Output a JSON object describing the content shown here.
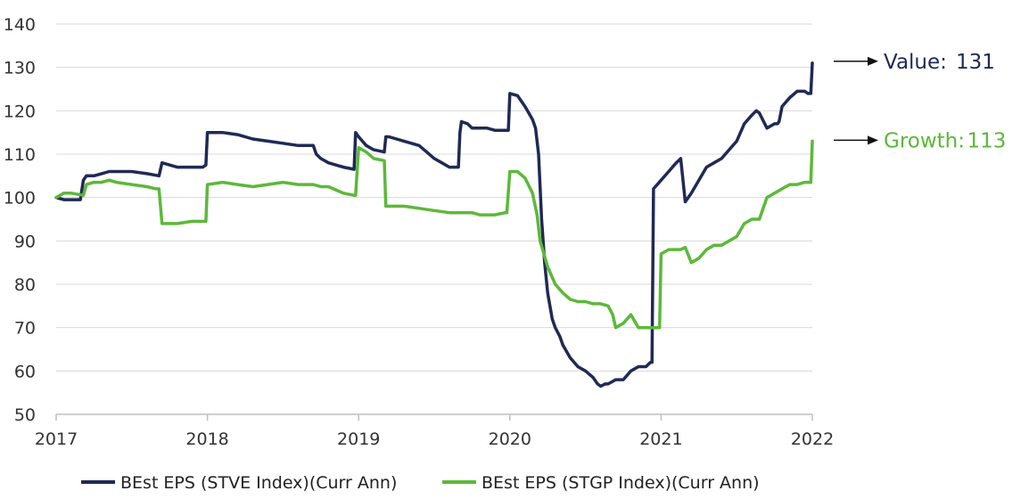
{
  "chart_data": {
    "type": "line",
    "title": "",
    "xlabel": "",
    "ylabel": "",
    "ylim": [
      50,
      140
    ],
    "xlim": [
      2017,
      2022
    ],
    "yticks": [
      50,
      60,
      70,
      80,
      90,
      100,
      110,
      120,
      130,
      140
    ],
    "xticks": [
      2017,
      2018,
      2019,
      2020,
      2021,
      2022
    ],
    "grid": "horizontal",
    "legend": "bottom",
    "colors": {
      "value": "#1f2a55",
      "growth": "#5db83a",
      "grid": "#d9d9d9",
      "axis": "#bfbfbf"
    },
    "series": [
      {
        "name": "BEst EPS (STVE Index)(Curr Ann)",
        "x": [
          2017.0,
          2017.05,
          2017.1,
          2017.13,
          2017.16,
          2017.18,
          2017.2,
          2017.25,
          2017.3,
          2017.35,
          2017.4,
          2017.5,
          2017.6,
          2017.68,
          2017.7,
          2017.8,
          2017.9,
          2017.97,
          2017.99,
          2018.0,
          2018.05,
          2018.1,
          2018.2,
          2018.3,
          2018.4,
          2018.5,
          2018.6,
          2018.7,
          2018.72,
          2018.75,
          2018.8,
          2018.9,
          2018.97,
          2018.98,
          2019.0,
          2019.05,
          2019.1,
          2019.17,
          2019.18,
          2019.2,
          2019.3,
          2019.4,
          2019.45,
          2019.5,
          2019.55,
          2019.6,
          2019.66,
          2019.67,
          2019.68,
          2019.72,
          2019.75,
          2019.8,
          2019.85,
          2019.9,
          2019.95,
          2019.97,
          2019.99,
          2020.0,
          2020.05,
          2020.1,
          2020.15,
          2020.17,
          2020.19,
          2020.21,
          2020.23,
          2020.25,
          2020.28,
          2020.3,
          2020.33,
          2020.35,
          2020.4,
          2020.45,
          2020.5,
          2020.55,
          2020.58,
          2020.6,
          2020.63,
          2020.65,
          2020.7,
          2020.75,
          2020.8,
          2020.85,
          2020.9,
          2020.93,
          2020.94,
          2020.95,
          2021.0,
          2021.05,
          2021.1,
          2021.13,
          2021.16,
          2021.2,
          2021.25,
          2021.3,
          2021.35,
          2021.4,
          2021.45,
          2021.5,
          2021.55,
          2021.6,
          2021.63,
          2021.65,
          2021.7,
          2021.75,
          2021.77,
          2021.78,
          2021.8,
          2021.85,
          2021.9,
          2021.95,
          2021.97,
          2021.99,
          2022.0
        ],
        "values": [
          100,
          99.5,
          99.5,
          99.5,
          99.5,
          104,
          105,
          105,
          105.5,
          106,
          106,
          106,
          105.5,
          105,
          108,
          107,
          107,
          107,
          107.5,
          115,
          115,
          115,
          114.5,
          113.5,
          113,
          112.5,
          112,
          112,
          110,
          109,
          108,
          107,
          106.5,
          115,
          114,
          112,
          111,
          110.5,
          114,
          114,
          113,
          112,
          110.5,
          109,
          108,
          107,
          107,
          115,
          117.5,
          117,
          116,
          116,
          116,
          115.5,
          115.5,
          115.5,
          115.5,
          124,
          123.5,
          121,
          118,
          116,
          110,
          95,
          85,
          78,
          72,
          70,
          68,
          66,
          63,
          61,
          60,
          58.5,
          57,
          56.5,
          57,
          57,
          58,
          58,
          60,
          61,
          61,
          62,
          62,
          102,
          104,
          106,
          108,
          109,
          99,
          101,
          104,
          107,
          108,
          109,
          111,
          113,
          117,
          119,
          120,
          119.5,
          116,
          117,
          117,
          117.5,
          121,
          123,
          124.5,
          124.5,
          124,
          124,
          131
        ]
      },
      {
        "name": "BEst EPS (STGP Index)(Curr Ann)",
        "x": [
          2017.0,
          2017.05,
          2017.1,
          2017.18,
          2017.2,
          2017.25,
          2017.3,
          2017.35,
          2017.4,
          2017.5,
          2017.6,
          2017.66,
          2017.68,
          2017.7,
          2017.8,
          2017.9,
          2017.97,
          2017.99,
          2018.0,
          2018.1,
          2018.2,
          2018.3,
          2018.4,
          2018.5,
          2018.6,
          2018.7,
          2018.75,
          2018.8,
          2018.9,
          2018.97,
          2018.98,
          2019.0,
          2019.05,
          2019.1,
          2019.17,
          2019.18,
          2019.2,
          2019.3,
          2019.4,
          2019.5,
          2019.6,
          2019.7,
          2019.75,
          2019.8,
          2019.9,
          2019.97,
          2019.98,
          2020.0,
          2020.05,
          2020.1,
          2020.15,
          2020.18,
          2020.2,
          2020.25,
          2020.3,
          2020.35,
          2020.4,
          2020.45,
          2020.5,
          2020.55,
          2020.6,
          2020.65,
          2020.68,
          2020.7,
          2020.75,
          2020.8,
          2020.85,
          2020.88,
          2020.9,
          2020.95,
          2020.96,
          2020.99,
          2021.0,
          2021.05,
          2021.1,
          2021.13,
          2021.16,
          2021.2,
          2021.25,
          2021.3,
          2021.35,
          2021.4,
          2021.45,
          2021.5,
          2021.55,
          2021.6,
          2021.65,
          2021.7,
          2021.75,
          2021.8,
          2021.85,
          2021.9,
          2021.95,
          2021.99,
          2022.0
        ],
        "values": [
          100,
          101,
          101,
          100.5,
          103,
          103.5,
          103.5,
          104,
          103.5,
          103,
          102.5,
          102,
          102,
          94,
          94,
          94.5,
          94.5,
          94.5,
          103,
          103.5,
          103,
          102.5,
          103,
          103.5,
          103,
          103,
          102.5,
          102.5,
          101,
          100.5,
          100.5,
          111.5,
          110.5,
          109,
          108.5,
          98,
          98,
          98,
          97.5,
          97,
          96.5,
          96.5,
          96.5,
          96,
          96,
          96.5,
          96.5,
          106,
          106,
          104.5,
          101,
          96,
          90,
          84,
          80,
          78,
          76.5,
          76,
          76,
          75.5,
          75.5,
          75,
          73,
          70,
          71,
          73,
          70,
          70,
          70,
          70,
          70,
          70,
          87,
          88,
          88,
          88,
          88.5,
          85,
          86,
          88,
          89,
          89,
          90,
          91,
          94,
          95,
          95,
          100,
          101,
          102,
          103,
          103,
          103.5,
          103.5,
          113
        ]
      }
    ],
    "annotations": [
      {
        "label": "Value:",
        "value": "131",
        "series": 0,
        "at_y": 131
      },
      {
        "label": "Growth:",
        "value": "113",
        "series": 1,
        "at_y": 113
      }
    ]
  }
}
